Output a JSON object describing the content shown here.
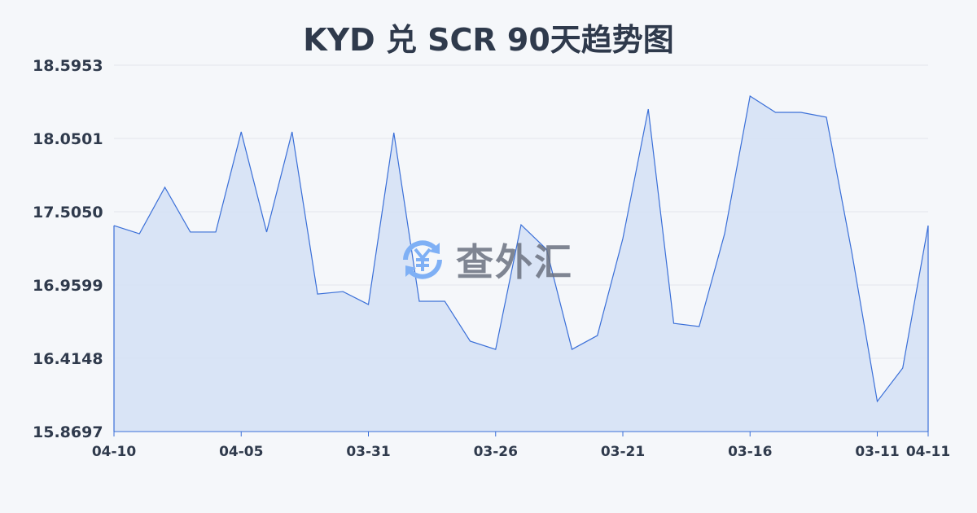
{
  "chart_data": {
    "type": "area",
    "title": "KYD 兑 SCR 90天趋势图",
    "xlabel": "",
    "ylabel": "",
    "x_tick_labels": [
      "04-10",
      "04-05",
      "03-31",
      "03-26",
      "03-21",
      "03-16",
      "03-11",
      "04-11"
    ],
    "x_tick_indices": [
      0,
      5,
      10,
      15,
      20,
      25,
      30,
      32
    ],
    "y_ticks": [
      "18.5953",
      "18.0501",
      "17.5050",
      "16.9599",
      "16.4148",
      "15.8697"
    ],
    "ylim": [
      15.8697,
      18.5953
    ],
    "grid": true,
    "values": [
      17.402,
      17.341,
      17.687,
      17.354,
      17.354,
      18.099,
      17.354,
      18.099,
      16.893,
      16.911,
      16.815,
      18.093,
      16.839,
      16.839,
      16.542,
      16.481,
      17.408,
      17.226,
      16.481,
      16.584,
      17.305,
      18.268,
      16.675,
      16.651,
      17.341,
      18.365,
      18.244,
      18.244,
      18.208,
      17.202,
      16.094,
      16.342,
      17.402
    ],
    "line_color": "#3a6fd8",
    "fill_color": "#d6e1f5"
  },
  "watermark": {
    "text": "查外汇",
    "icon": "yen-exchange-icon"
  }
}
